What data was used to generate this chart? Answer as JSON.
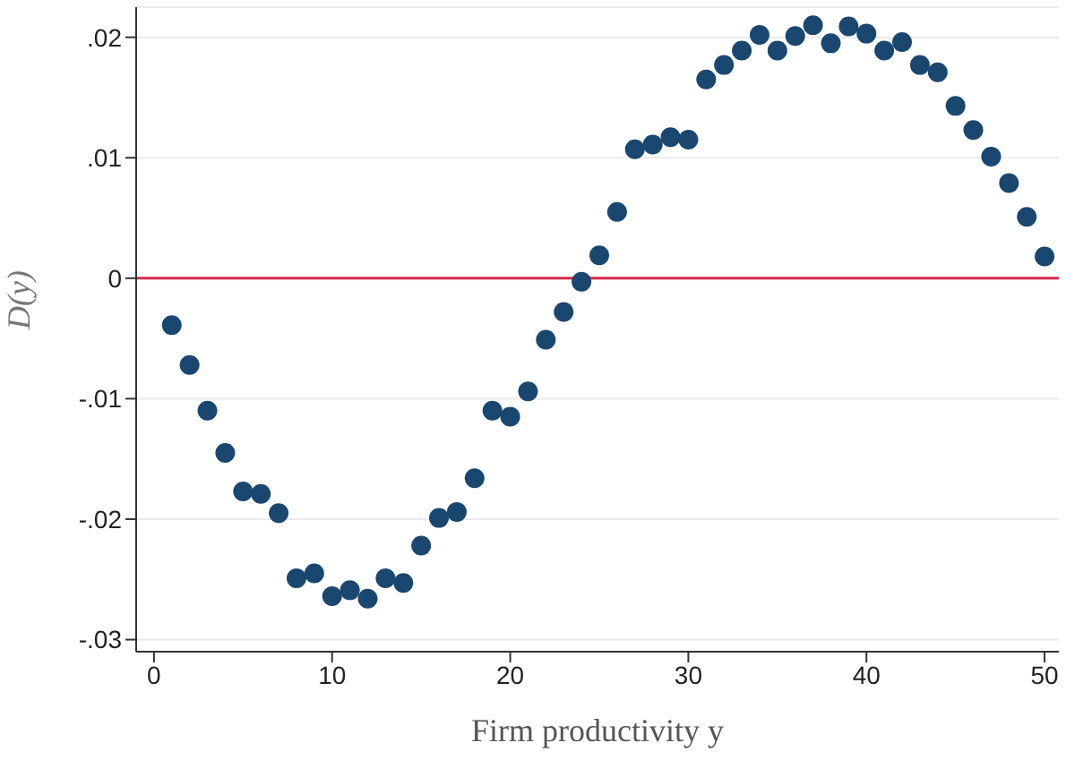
{
  "chart_data": {
    "type": "scatter",
    "xlabel": "Firm productivity y",
    "ylabel": "D(y)",
    "x": [
      1,
      2,
      3,
      4,
      5,
      6,
      7,
      8,
      9,
      10,
      11,
      12,
      13,
      14,
      15,
      16,
      17,
      18,
      19,
      20,
      21,
      22,
      23,
      24,
      25,
      26,
      27,
      28,
      29,
      30,
      31,
      32,
      33,
      34,
      35,
      36,
      37,
      38,
      39,
      40,
      41,
      42,
      43,
      44,
      45,
      46,
      47,
      48,
      49,
      50
    ],
    "series": [
      {
        "color": "#1a476f",
        "values": [
          -0.0039,
          -0.0072,
          -0.011,
          -0.0145,
          -0.0177,
          -0.0179,
          -0.0195,
          -0.0249,
          -0.0245,
          -0.0264,
          -0.0259,
          -0.0266,
          -0.0249,
          -0.0253,
          -0.0222,
          -0.0199,
          -0.0194,
          -0.0166,
          -0.011,
          -0.0115,
          -0.0094,
          -0.0051,
          -0.0028,
          -0.0003,
          0.0019,
          0.0055,
          0.0107,
          0.0111,
          0.0117,
          0.0115,
          0.0165,
          0.0177,
          0.0189,
          0.0202,
          0.0189,
          0.0201,
          0.021,
          0.0195,
          0.0209,
          0.0203,
          0.0189,
          0.0196,
          0.0177,
          0.0171,
          0.0143,
          0.0123,
          0.0101,
          0.0079,
          0.0051,
          0.0018
        ]
      }
    ],
    "xlim": [
      -1,
      50.8
    ],
    "xticks": [
      0,
      10,
      20,
      30,
      40,
      50
    ],
    "ylim": [
      -0.031,
      0.0225
    ],
    "yticks": [
      {
        "value": -0.03,
        "label": "-.03"
      },
      {
        "value": -0.02,
        "label": "-.02"
      },
      {
        "value": -0.01,
        "label": "-.01"
      },
      0,
      {
        "value": 0.01,
        "label": ".01"
      },
      {
        "value": 0.02,
        "label": ".02"
      }
    ],
    "grid": "y",
    "marker": "circle",
    "ref_lines": [
      {
        "axis": "y",
        "value": 0,
        "color": "#d6294a"
      }
    ]
  }
}
